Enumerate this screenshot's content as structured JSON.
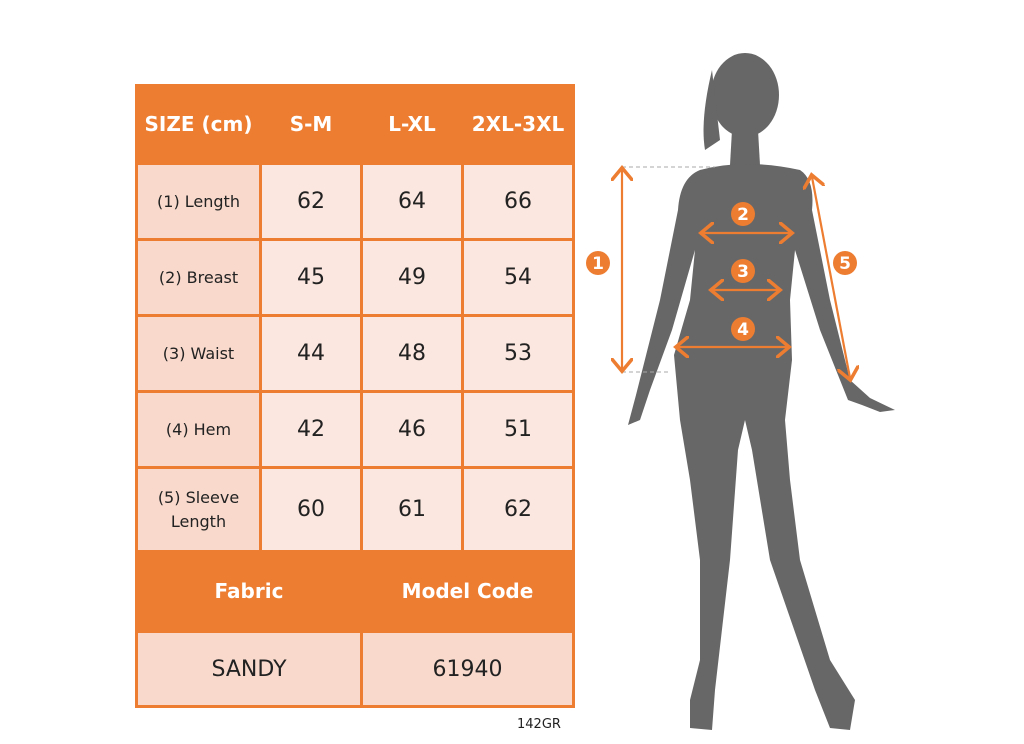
{
  "size_table": {
    "header": [
      "SIZE (cm)",
      "S-M",
      "L-XL",
      "2XL-3XL"
    ],
    "rows": [
      {
        "label": "(1) Length",
        "values": [
          "62",
          "64",
          "66"
        ]
      },
      {
        "label": "(2) Breast",
        "values": [
          "45",
          "49",
          "54"
        ]
      },
      {
        "label": "(3) Waist",
        "values": [
          "44",
          "48",
          "53"
        ]
      },
      {
        "label": "(4) Hem",
        "values": [
          "42",
          "46",
          "51"
        ]
      },
      {
        "label": "(5) Sleeve Length",
        "values": [
          "60",
          "61",
          "62"
        ]
      }
    ],
    "fabric_label": "Fabric",
    "model_code_label": "Model Code",
    "fabric_value": "SANDY",
    "model_code_value": "61940"
  },
  "footer_code": "142GR",
  "figure": {
    "markers": [
      "1",
      "2",
      "3",
      "4",
      "5"
    ],
    "colors": {
      "accent": "#ED7D31",
      "silhouette": "#676767",
      "cell": "#F8D9CC"
    }
  }
}
